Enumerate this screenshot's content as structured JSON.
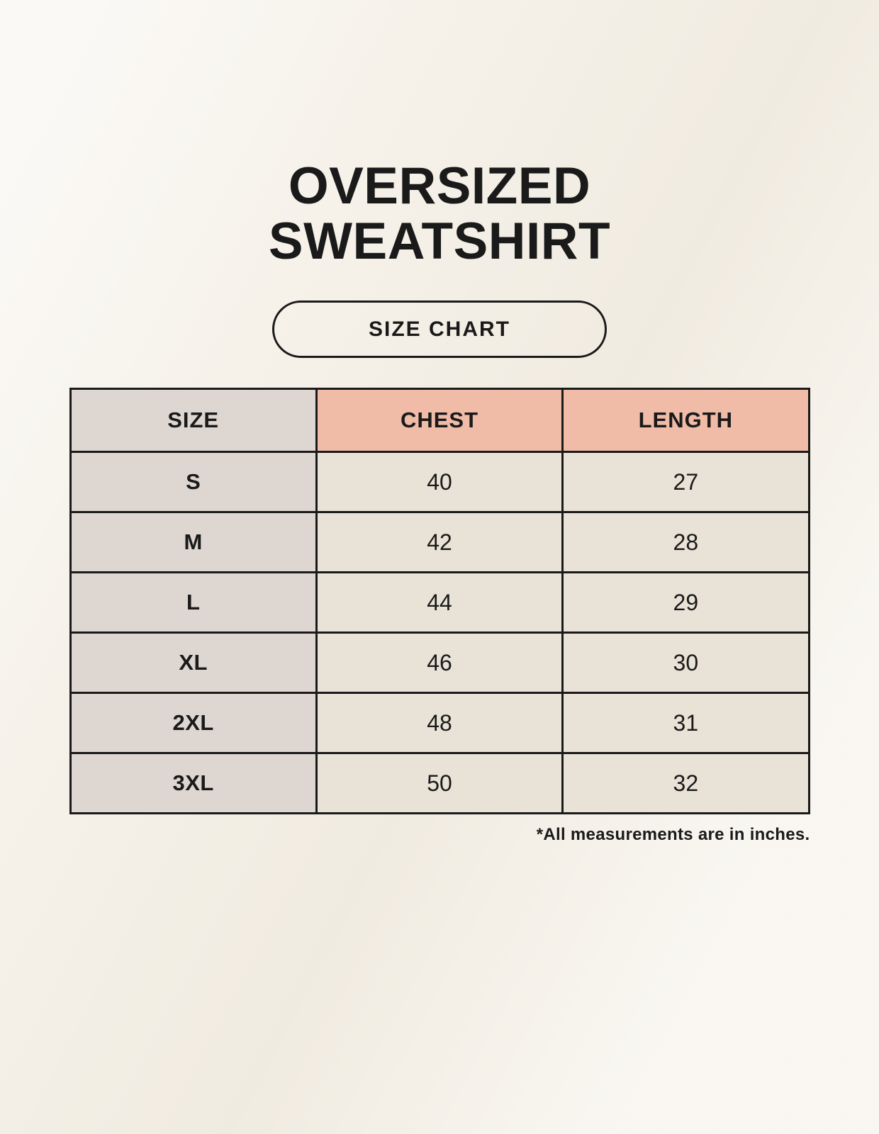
{
  "header": {
    "title_lines": [
      "OVERSIZED",
      "SWEATSHIRT"
    ],
    "badge_label": "SIZE CHART"
  },
  "chart_data": {
    "type": "table",
    "title": "OVERSIZED SWEATSHIRT SIZE CHART",
    "columns": [
      "SIZE",
      "CHEST",
      "LENGTH"
    ],
    "rows": [
      [
        "S",
        40,
        27
      ],
      [
        "M",
        42,
        28
      ],
      [
        "L",
        44,
        29
      ],
      [
        "XL",
        46,
        30
      ],
      [
        "2XL",
        48,
        31
      ],
      [
        "3XL",
        50,
        32
      ]
    ],
    "units": "inches"
  },
  "footnote": "*All measurements are in inches.",
  "colors": {
    "background": "#F6F2EA",
    "size_column_bg": "#DDD6D1",
    "header_accent_bg": "#F0BCA8",
    "data_cell_bg": "#E9E2D6",
    "border": "#1A1A1A",
    "text": "#1A1A1A"
  }
}
